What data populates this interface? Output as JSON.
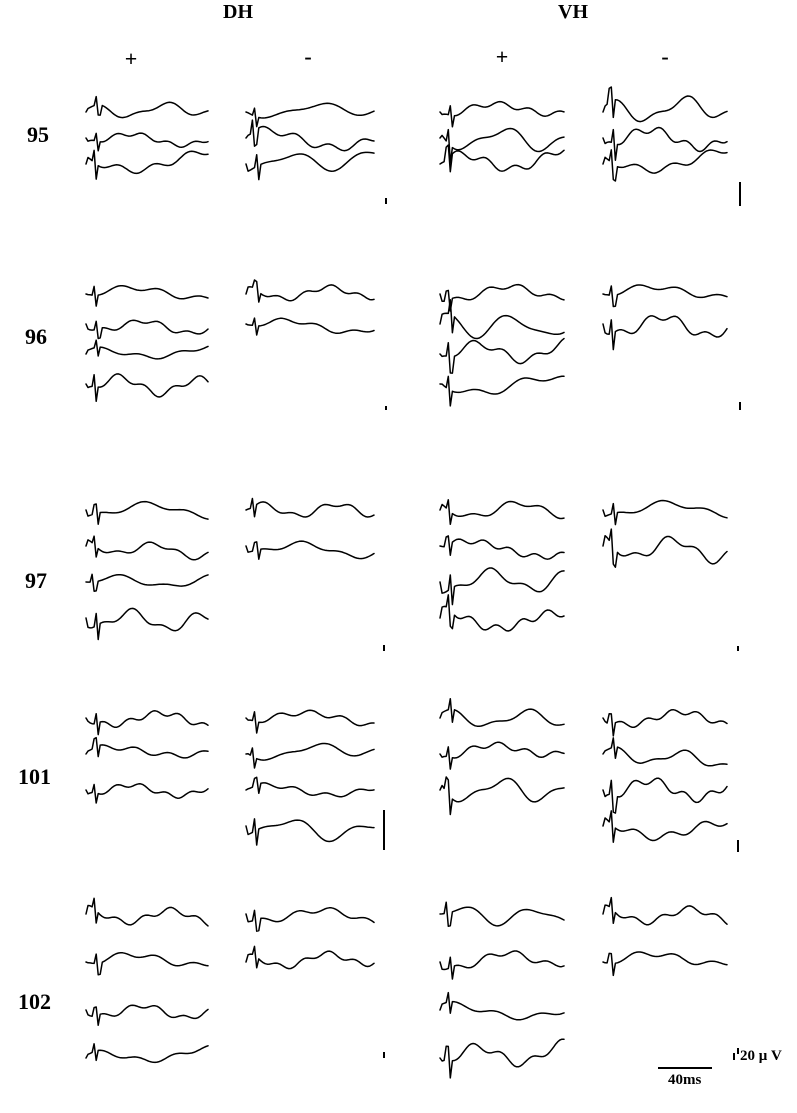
{
  "headers": {
    "dh": "DH",
    "vh": "VH"
  },
  "signs": {
    "plus": "+",
    "minus": "-"
  },
  "rows": [
    "95",
    "96",
    "97",
    "101",
    "102"
  ],
  "scale": {
    "time": "40ms",
    "amplitude": "20 μ V"
  },
  "trace_counts": [
    [
      3,
      3,
      3,
      3
    ],
    [
      4,
      2,
      4,
      2
    ],
    [
      4,
      2,
      4,
      2
    ],
    [
      3,
      4,
      3,
      4
    ],
    [
      4,
      2,
      4,
      2
    ]
  ]
}
